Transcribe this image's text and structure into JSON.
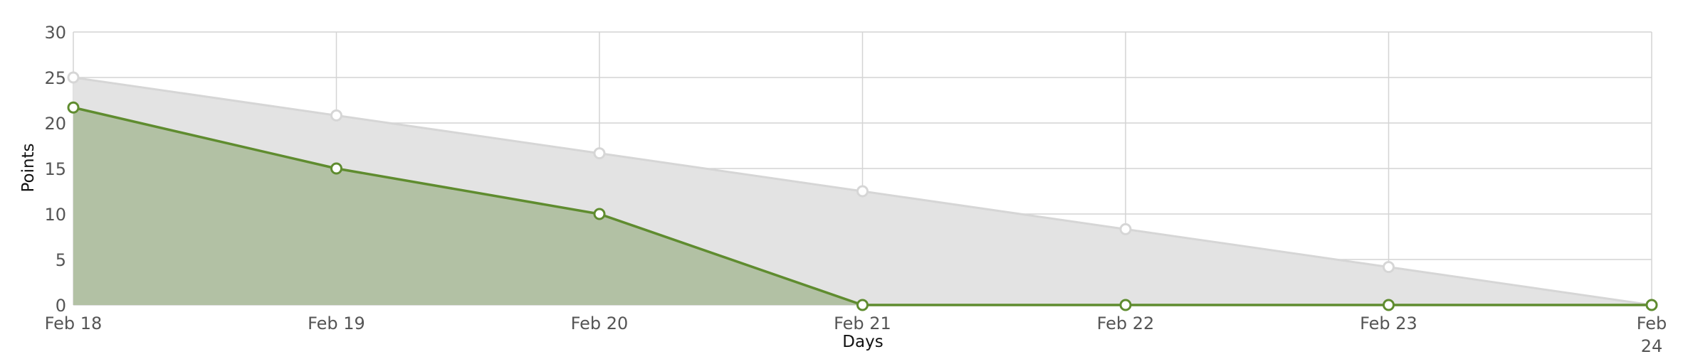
{
  "chart_data": {
    "type": "area",
    "title": "",
    "xlabel": "Days",
    "ylabel": "Points",
    "categories": [
      "Feb 18",
      "Feb 19",
      "Feb 20",
      "Feb 21",
      "Feb 22",
      "Feb 23",
      "Feb 24"
    ],
    "x_tick_labels": [
      [
        "Feb 18"
      ],
      [
        "Feb 19"
      ],
      [
        "Feb 20"
      ],
      [
        "Feb 21"
      ],
      [
        "Feb 22"
      ],
      [
        "Feb 23"
      ],
      [
        "Feb",
        "24"
      ]
    ],
    "ylim": [
      0,
      30
    ],
    "yticks": [
      0,
      5,
      10,
      15,
      20,
      25,
      30
    ],
    "grid": true,
    "legend": "none",
    "series": [
      {
        "values": [
          25,
          20.83,
          16.67,
          12.5,
          8.33,
          4.17,
          0
        ],
        "line_color": "#d6d6d6",
        "fill_color": "#e3e3e3",
        "marker_color": "#d6d6d6"
      },
      {
        "values": [
          21.7,
          15,
          10,
          0,
          0,
          0,
          0
        ],
        "line_color": "#5f8c2f",
        "fill_color": "#94ad7e",
        "marker_color": "#5f8c2f"
      }
    ]
  }
}
